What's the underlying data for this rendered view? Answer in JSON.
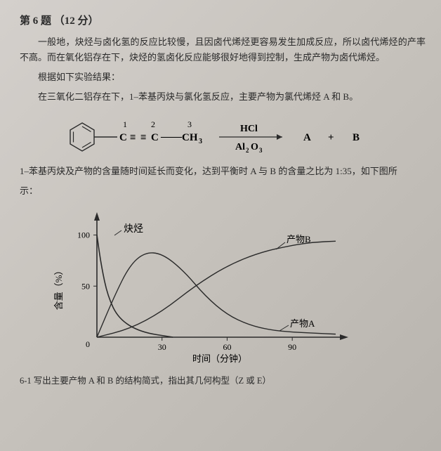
{
  "header": {
    "title": "第 6 题",
    "points": "（12 分）"
  },
  "paragraphs": {
    "p1": "一般地，炔烃与卤化氢的反应比较慢，且因卤代烯烃更容易发生加成反应，所以卤代烯烃的产率不高。而在氧化铝存在下，炔烃的氢卤化反应能够很好地得到控制，生成产物为卤代烯烃。",
    "p2": "根据如下实验结果：",
    "p3": "在三氧化二铝存在下，1–苯基丙炔与氯化氢反应，主要产物为氯代烯烃 A 和 B。",
    "p4a": "1–苯基丙炔及产物的含量随时间延长而变化，达到平衡时 A 与 B 的含量之比为 1:35，如下图所",
    "p4b": "示："
  },
  "reaction": {
    "pos1": "1",
    "pos2": "2",
    "pos3": "3",
    "c1": "C",
    "triple": "≡",
    "c2": "C",
    "bond": "——",
    "ch3": "CH",
    "sub3": "3",
    "reagent_top": "HCl",
    "reagent_bot_a": "Al",
    "reagent_bot_sub1": "2",
    "reagent_bot_b": "O",
    "reagent_bot_sub2": "3",
    "prodA": "A",
    "plus": "+",
    "prodB": "B"
  },
  "chart": {
    "type": "line",
    "title": "",
    "xlabel": "时间（分钟）",
    "ylabel": "含量（%）",
    "xlim": [
      0,
      110
    ],
    "ylim": [
      0,
      110
    ],
    "xticks": [
      30,
      60,
      90
    ],
    "yticks": [
      50,
      100
    ],
    "background_color": "transparent",
    "axis_color": "#2a2a2a",
    "label_fontsize": 13,
    "tick_fontsize": 12,
    "legend_alkyne": "炔烃",
    "legend_prodA": "产物A",
    "legend_prodB": "产物B",
    "series": {
      "alkyne": {
        "color": "#2a2a2a",
        "width": 1.6,
        "points": [
          [
            0,
            100
          ],
          [
            2,
            70
          ],
          [
            5,
            40
          ],
          [
            10,
            18
          ],
          [
            20,
            5
          ],
          [
            35,
            0
          ]
        ]
      },
      "prodA": {
        "color": "#2a2a2a",
        "width": 1.4,
        "points": [
          [
            0,
            0
          ],
          [
            8,
            40
          ],
          [
            15,
            70
          ],
          [
            22,
            83
          ],
          [
            30,
            82
          ],
          [
            40,
            65
          ],
          [
            50,
            40
          ],
          [
            60,
            22
          ],
          [
            70,
            12
          ],
          [
            80,
            7
          ],
          [
            90,
            5
          ],
          [
            100,
            4
          ],
          [
            110,
            3
          ]
        ]
      },
      "prodB": {
        "color": "#2a2a2a",
        "width": 1.4,
        "points": [
          [
            0,
            0
          ],
          [
            15,
            8
          ],
          [
            30,
            25
          ],
          [
            45,
            50
          ],
          [
            60,
            70
          ],
          [
            75,
            83
          ],
          [
            90,
            90
          ],
          [
            100,
            93
          ],
          [
            110,
            94
          ]
        ]
      }
    }
  },
  "question": {
    "q1": "6-1 写出主要产物 A 和 B 的结构简式，指出其几何构型（Z 或 E）"
  }
}
